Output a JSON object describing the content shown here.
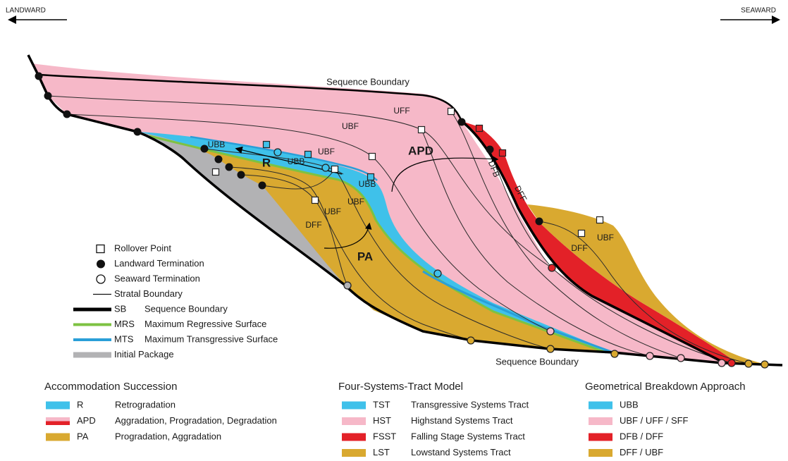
{
  "header": {
    "landward": "LANDWARD",
    "seaward": "SEAWARD"
  },
  "diagram": {
    "sequence_boundary_top": "Sequence Boundary",
    "sequence_boundary_bottom": "Sequence Boundary",
    "labels": [
      "UFF",
      "UBF",
      "UBF",
      "UBB",
      "UBB",
      "R",
      "APD",
      "UBB",
      "UBF",
      "UBF",
      "DFF",
      "PA",
      "DFB",
      "DFF",
      "DFF",
      "UBF"
    ]
  },
  "symbol_legend": [
    {
      "label": "Rollover Point"
    },
    {
      "label": "Landward Termination"
    },
    {
      "label": "Seaward Termination"
    },
    {
      "label": "Stratal Boundary"
    },
    {
      "code": "SB",
      "label": "Sequence Boundary"
    },
    {
      "code": "MRS",
      "label": "Maximum Regressive Surface"
    },
    {
      "code": "MTS",
      "label": "Maximum Transgressive Surface"
    },
    {
      "label": "Initial Package"
    }
  ],
  "legends": [
    {
      "title": "Accommodation Succession",
      "items": [
        {
          "code": "R",
          "label": "Retrogradation"
        },
        {
          "code": "APD",
          "label": "Aggradation, Progradation, Degradation"
        },
        {
          "code": "PA",
          "label": "Progradation, Aggradation"
        }
      ]
    },
    {
      "title": "Four-Systems-Tract Model",
      "items": [
        {
          "code": "TST",
          "label": "Transgressive Systems Tract"
        },
        {
          "code": "HST",
          "label": "Highstand Systems Tract"
        },
        {
          "code": "FSST",
          "label": "Falling Stage Systems Tract"
        },
        {
          "code": "LST",
          "label": "Lowstand Systems Tract"
        }
      ]
    },
    {
      "title": "Geometrical Breakdown Approach",
      "items": [
        {
          "label": "UBB"
        },
        {
          "label": "UBF / UFF / SFF"
        },
        {
          "label": "DFB / DFF"
        },
        {
          "label": "DFF / UBF"
        }
      ]
    }
  ]
}
